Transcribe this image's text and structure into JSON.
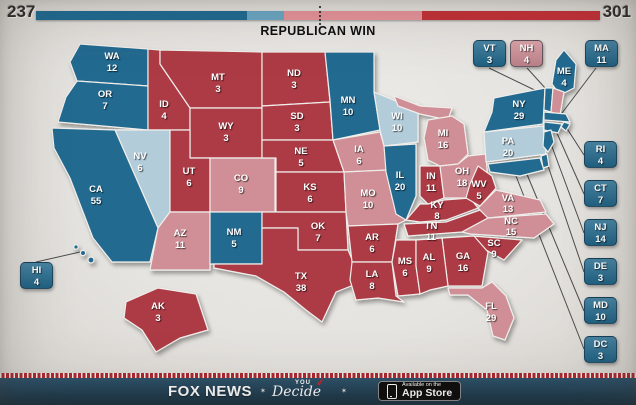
{
  "meter": {
    "dem_total": "237",
    "rep_total": "301",
    "result_title": "REPUBLICAN WIN",
    "total_ev": 538,
    "majority_ev": 270,
    "segments": [
      {
        "name": "solid-dem",
        "ev": 201,
        "color": "#1d6a92"
      },
      {
        "name": "lean-dem",
        "ev": 36,
        "color": "#6aa7c5"
      },
      {
        "name": "lean-rep",
        "ev": 131,
        "color": "#e8949b"
      },
      {
        "name": "solid-rep",
        "ev": 170,
        "color": "#c42f36"
      }
    ]
  },
  "legend_colors": {
    "solid_dem": "#236b90",
    "lean_dem": "#b2ccda",
    "lean_rep": "#d08f97",
    "solid_rep": "#ad3a45"
  },
  "states": {
    "WA": {
      "abbr": "WA",
      "ev": "12",
      "rating": "solid_dem"
    },
    "OR": {
      "abbr": "OR",
      "ev": "7",
      "rating": "solid_dem"
    },
    "CA": {
      "abbr": "CA",
      "ev": "55",
      "rating": "solid_dem"
    },
    "NV": {
      "abbr": "NV",
      "ev": "6",
      "rating": "lean_dem"
    },
    "ID": {
      "abbr": "ID",
      "ev": "4",
      "rating": "solid_rep"
    },
    "MT": {
      "abbr": "MT",
      "ev": "3",
      "rating": "solid_rep"
    },
    "WY": {
      "abbr": "WY",
      "ev": "3",
      "rating": "solid_rep"
    },
    "UT": {
      "abbr": "UT",
      "ev": "6",
      "rating": "solid_rep"
    },
    "CO": {
      "abbr": "CO",
      "ev": "9",
      "rating": "lean_rep"
    },
    "AZ": {
      "abbr": "AZ",
      "ev": "11",
      "rating": "lean_rep"
    },
    "NM": {
      "abbr": "NM",
      "ev": "5",
      "rating": "solid_dem"
    },
    "ND": {
      "abbr": "ND",
      "ev": "3",
      "rating": "solid_rep"
    },
    "SD": {
      "abbr": "SD",
      "ev": "3",
      "rating": "solid_rep"
    },
    "NE": {
      "abbr": "NE",
      "ev": "5",
      "rating": "solid_rep"
    },
    "KS": {
      "abbr": "KS",
      "ev": "6",
      "rating": "solid_rep"
    },
    "OK": {
      "abbr": "OK",
      "ev": "7",
      "rating": "solid_rep"
    },
    "TX": {
      "abbr": "TX",
      "ev": "38",
      "rating": "solid_rep"
    },
    "MN": {
      "abbr": "MN",
      "ev": "10",
      "rating": "solid_dem"
    },
    "IA": {
      "abbr": "IA",
      "ev": "6",
      "rating": "lean_rep"
    },
    "MO": {
      "abbr": "MO",
      "ev": "10",
      "rating": "lean_rep"
    },
    "AR": {
      "abbr": "AR",
      "ev": "6",
      "rating": "solid_rep"
    },
    "LA": {
      "abbr": "LA",
      "ev": "8",
      "rating": "solid_rep"
    },
    "WI": {
      "abbr": "WI",
      "ev": "10",
      "rating": "lean_dem"
    },
    "IL": {
      "abbr": "IL",
      "ev": "20",
      "rating": "solid_dem"
    },
    "MS": {
      "abbr": "MS",
      "ev": "6",
      "rating": "solid_rep"
    },
    "MI": {
      "abbr": "MI",
      "ev": "16",
      "rating": "lean_rep"
    },
    "IN": {
      "abbr": "IN",
      "ev": "11",
      "rating": "solid_rep"
    },
    "OH": {
      "abbr": "OH",
      "ev": "18",
      "rating": "lean_rep"
    },
    "KY": {
      "abbr": "KY",
      "ev": "8",
      "rating": "solid_rep"
    },
    "TN": {
      "abbr": "TN",
      "ev": "11",
      "rating": "solid_rep"
    },
    "WV": {
      "abbr": "WV",
      "ev": "5",
      "rating": "solid_rep"
    },
    "VA": {
      "abbr": "VA",
      "ev": "13",
      "rating": "lean_rep"
    },
    "NC": {
      "abbr": "NC",
      "ev": "15",
      "rating": "lean_rep"
    },
    "SC": {
      "abbr": "SC",
      "ev": "9",
      "rating": "solid_rep"
    },
    "GA": {
      "abbr": "GA",
      "ev": "16",
      "rating": "solid_rep"
    },
    "AL": {
      "abbr": "AL",
      "ev": "9",
      "rating": "solid_rep"
    },
    "FL": {
      "abbr": "FL",
      "ev": "29",
      "rating": "lean_rep"
    },
    "PA": {
      "abbr": "PA",
      "ev": "20",
      "rating": "lean_dem"
    },
    "NY": {
      "abbr": "NY",
      "ev": "29",
      "rating": "solid_dem"
    },
    "ME": {
      "abbr": "ME",
      "ev": "4",
      "rating": "solid_dem"
    },
    "VT": {
      "abbr": "VT",
      "ev": "3",
      "rating": "solid_dem"
    },
    "NH": {
      "abbr": "NH",
      "ev": "4",
      "rating": "lean_rep"
    },
    "MA": {
      "abbr": "MA",
      "ev": "11",
      "rating": "solid_dem"
    },
    "RI": {
      "abbr": "RI",
      "ev": "4",
      "rating": "solid_dem"
    },
    "CT": {
      "abbr": "CT",
      "ev": "7",
      "rating": "solid_dem"
    },
    "NJ": {
      "abbr": "NJ",
      "ev": "14",
      "rating": "solid_dem"
    },
    "DE": {
      "abbr": "DE",
      "ev": "3",
      "rating": "solid_dem"
    },
    "MD": {
      "abbr": "MD",
      "ev": "10",
      "rating": "solid_dem"
    },
    "DC": {
      "abbr": "DC",
      "ev": "3",
      "rating": "solid_dem"
    },
    "AK": {
      "abbr": "AK",
      "ev": "3",
      "rating": "solid_rep"
    },
    "HI": {
      "abbr": "HI",
      "ev": "4",
      "rating": "solid_dem"
    }
  },
  "footer": {
    "brand": "FOX NEWS",
    "star": "✶",
    "star2": "✶",
    "tagline_you": "YOU",
    "tagline_decide": "Decide",
    "check": "✔",
    "badge_top": "Available on the",
    "badge_bottom": "App Store"
  }
}
